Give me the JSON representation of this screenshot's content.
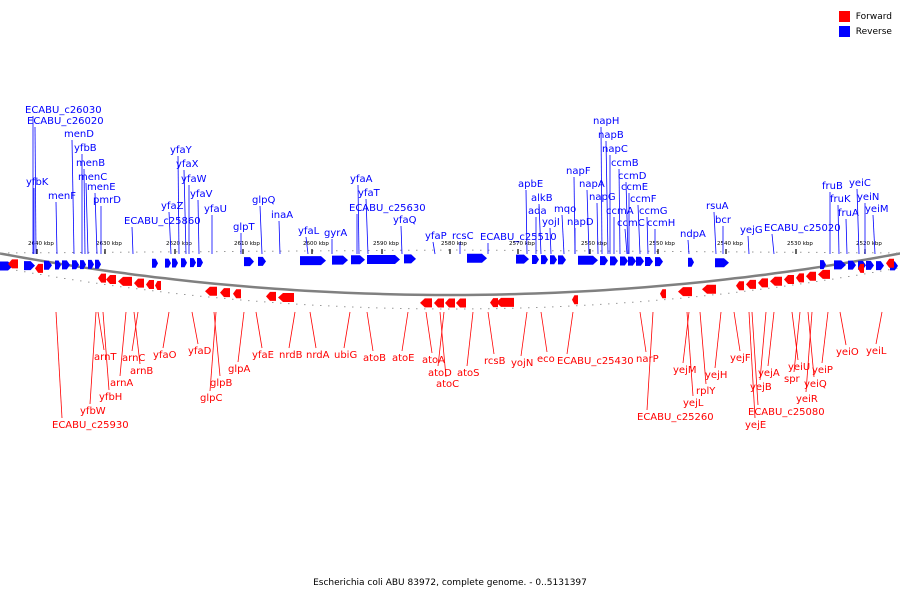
{
  "legend": {
    "items": [
      {
        "label": "Forward",
        "color": "#ff0000"
      },
      {
        "label": "Reverse",
        "color": "#0000ff"
      }
    ]
  },
  "caption": "Escherichia coli ABU 83972, complete genome. - 0..5131397",
  "colors": {
    "forward": "#ff0000",
    "reverse": "#0000ff",
    "backbone": "#808080"
  },
  "axis_ticks": [
    "2640 kbp",
    "2630 kbp",
    "2620 kbp",
    "2610 kbp",
    "2600 kbp",
    "2590 kbp",
    "2580 kbp",
    "2570 kbp",
    "2560 kbp",
    "2550 kbp",
    "2540 kbp",
    "2530 kbp",
    "2520 kbp"
  ],
  "reverse_genes": [
    "ECABU_c26030",
    "ECABU_c26020",
    "menD",
    "yfbB",
    "menB",
    "menC",
    "yfbK",
    "menF",
    "menE",
    "pmrD",
    "yfaY",
    "yfaX",
    "yfaW",
    "yfaV",
    "yfaZ",
    "yfaU",
    "ECABU_c25860",
    "glpQ",
    "glpT",
    "inaA",
    "yfaL",
    "gyrA",
    "yfaA",
    "yfaT",
    "ECABU_c25630",
    "yfaQ",
    "yfaP",
    "rcsC",
    "apbE",
    "alkB",
    "ada",
    "yojI",
    "mqo",
    "ECABU_c25510",
    "napF",
    "napA",
    "napD",
    "napH",
    "napB",
    "napC",
    "ccmB",
    "ccmD",
    "ccmE",
    "napG",
    "ccmF",
    "ccmA",
    "ccmG",
    "ccmC",
    "ccmH",
    "ndpA",
    "rsuA",
    "bcr",
    "yejG",
    "ECABU_c25020",
    "fruB",
    "fruK",
    "yeiC",
    "yeiN",
    "fruA",
    "yeiM"
  ],
  "forward_genes": [
    "arnT",
    "arnC",
    "arnB",
    "arnA",
    "yfbH",
    "yfbW",
    "ECABU_c25930",
    "yfaO",
    "yfaD",
    "glpA",
    "glpB",
    "glpC",
    "yfaE",
    "nrdB",
    "nrdA",
    "ubiG",
    "atoB",
    "atoE",
    "atoA",
    "atoD",
    "atoC",
    "atoS",
    "rcsB",
    "yojN",
    "eco",
    "ECABU_c25430",
    "narP",
    "yejM",
    "yejL",
    "ECABU_c25260",
    "rplY",
    "yejH",
    "yejF",
    "yejB",
    "yejE",
    "yejA",
    "ECABU_c25080",
    "spr",
    "yeiU",
    "yeiR",
    "yeiQ",
    "yeiP",
    "yeiO",
    "yeiL"
  ]
}
